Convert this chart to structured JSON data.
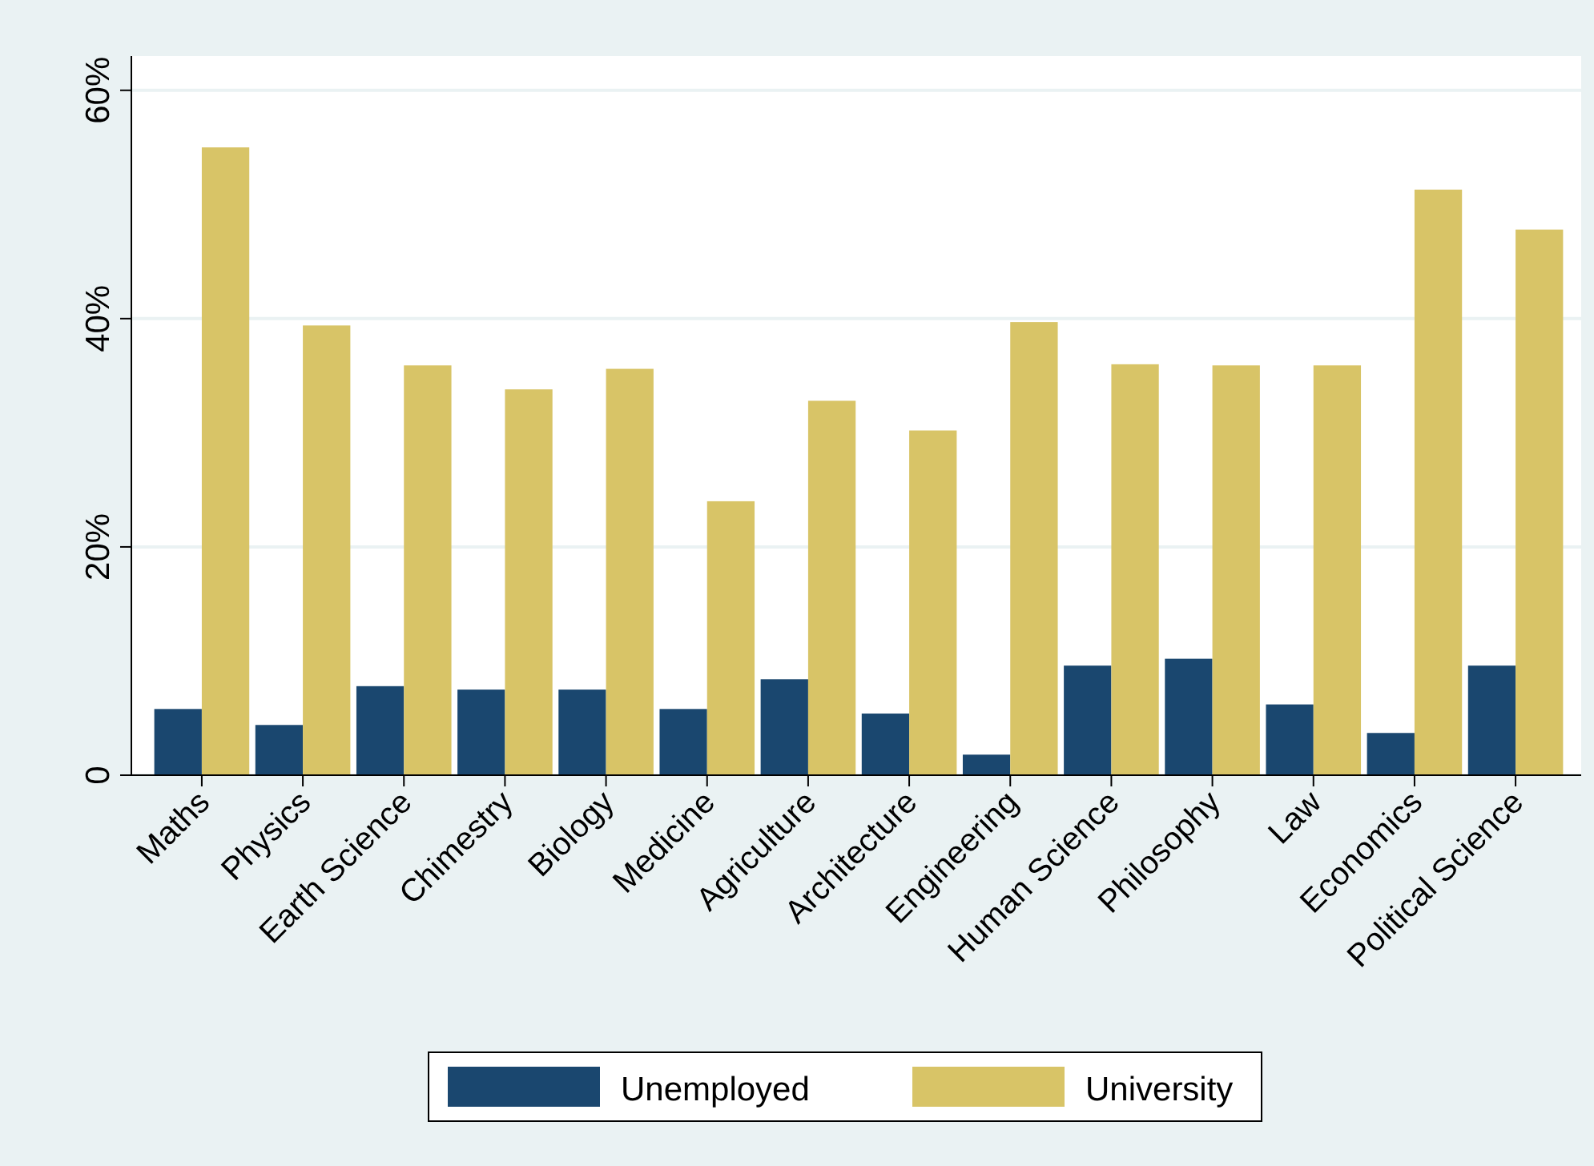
{
  "chart_data": {
    "type": "bar",
    "categories": [
      "Maths",
      "Physics",
      "Earth Science",
      "Chimestry",
      "Biology",
      "Medicine",
      "Agriculture",
      "Architecture",
      "Engineering",
      "Human Science",
      "Philosophy",
      "Law",
      "Economics",
      "Political Science"
    ],
    "series": [
      {
        "name": "Unemployed",
        "color": "#1a476f",
        "values": [
          5.8,
          4.4,
          7.8,
          7.5,
          7.5,
          5.8,
          8.4,
          5.4,
          1.8,
          9.6,
          10.2,
          6.2,
          3.7,
          9.6
        ]
      },
      {
        "name": "University",
        "color": "#d8c467",
        "values": [
          55.0,
          39.4,
          35.9,
          33.8,
          35.6,
          24.0,
          32.8,
          30.2,
          39.7,
          36.0,
          35.9,
          35.9,
          51.3,
          47.8
        ]
      }
    ],
    "ylim": [
      0,
      63
    ],
    "yticks": [
      {
        "value": 0,
        "label": "0"
      },
      {
        "value": 20,
        "label": "20%"
      },
      {
        "value": 40,
        "label": "40%"
      },
      {
        "value": 60,
        "label": "60%"
      }
    ],
    "grid": "y",
    "legend": "bottom"
  }
}
